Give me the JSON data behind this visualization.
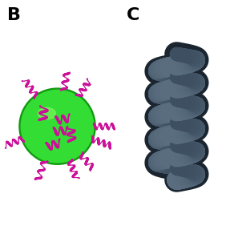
{
  "bg_color": "#ffffff",
  "label_B": "B",
  "label_C": "C",
  "label_fontsize": 16,
  "label_fontweight": "bold",
  "sphere_color_main": "#33dd33",
  "sphere_color_dark": "#119911",
  "sphere_color_light": "#88ff66",
  "helix_color": "#cc1199",
  "coil_color_main": "#3d4f60",
  "coil_color_dark": "#1a2530",
  "coil_color_light": "#5a6e80"
}
